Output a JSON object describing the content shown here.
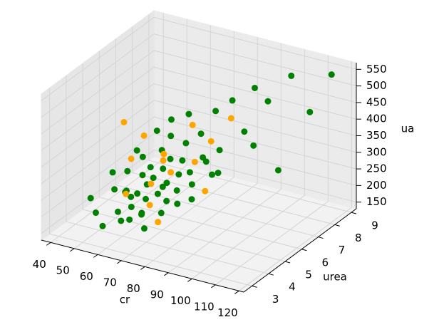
{
  "chart_data": {
    "type": "scatter3d",
    "xlabel": "cr",
    "ylabel": "urea",
    "zlabel": "ua",
    "xlim": [
      36,
      122
    ],
    "ylim": [
      2.5,
      9.3
    ],
    "zlim": [
      130,
      570
    ],
    "xticks": [
      40,
      50,
      60,
      70,
      80,
      90,
      100,
      110,
      120
    ],
    "yticks": [
      3,
      4,
      5,
      6,
      7,
      8,
      9
    ],
    "zticks": [
      150,
      200,
      250,
      300,
      350,
      400,
      450,
      500,
      550
    ],
    "grid": true,
    "series": [
      {
        "color": "#008000",
        "x": [
          45,
          48,
          50,
          52,
          53,
          55,
          55,
          56,
          57,
          58,
          58,
          59,
          60,
          60,
          61,
          62,
          62,
          63,
          64,
          64,
          65,
          65,
          66,
          67,
          67,
          68,
          68,
          69,
          70,
          70,
          71,
          72,
          72,
          73,
          74,
          75,
          75,
          76,
          77,
          78,
          79,
          80,
          81,
          82,
          83,
          85,
          86,
          88,
          90,
          92,
          95,
          98,
          100,
          105,
          110,
          115,
          60,
          70,
          80,
          66
        ],
        "y": [
          4.2,
          5.1,
          3.8,
          6.0,
          4.5,
          5.0,
          3.5,
          4.8,
          6.5,
          4.0,
          5.5,
          4.3,
          5.2,
          3.9,
          6.8,
          4.6,
          5.4,
          4.1,
          5.8,
          4.9,
          3.7,
          6.2,
          5.0,
          4.4,
          7.0,
          5.3,
          4.0,
          5.6,
          4.7,
          6.4,
          5.1,
          3.6,
          5.9,
          4.8,
          5.4,
          6.6,
          4.2,
          5.0,
          7.2,
          5.5,
          4.6,
          6.0,
          5.2,
          7.5,
          4.9,
          6.3,
          5.7,
          8.0,
          5.5,
          6.8,
          7.8,
          6.5,
          8.5,
          7.0,
          8.2,
          8.8,
          4.5,
          5.0,
          6.2,
          4.3
        ],
        "z": [
          210,
          260,
          190,
          300,
          240,
          280,
          170,
          230,
          350,
          200,
          310,
          250,
          270,
          180,
          380,
          240,
          290,
          220,
          330,
          260,
          200,
          360,
          280,
          240,
          400,
          300,
          210,
          320,
          250,
          340,
          270,
          190,
          310,
          230,
          290,
          370,
          220,
          260,
          420,
          300,
          240,
          330,
          280,
          450,
          250,
          350,
          300,
          480,
          320,
          400,
          460,
          380,
          520,
          300,
          440,
          540,
          230,
          260,
          310,
          200
        ]
      },
      {
        "color": "#ffa500",
        "x": [
          50,
          55,
          58,
          62,
          65,
          68,
          70,
          72,
          75,
          78,
          80,
          85,
          88,
          60,
          66
        ],
        "y": [
          5.5,
          6.0,
          4.8,
          6.2,
          5.0,
          4.5,
          6.8,
          5.2,
          4.0,
          5.8,
          6.5,
          7.0,
          5.0,
          4.2,
          5.6
        ],
        "z": [
          400,
          350,
          330,
          300,
          260,
          220,
          380,
          300,
          200,
          320,
          360,
          420,
          280,
          250,
          310
        ]
      }
    ]
  }
}
